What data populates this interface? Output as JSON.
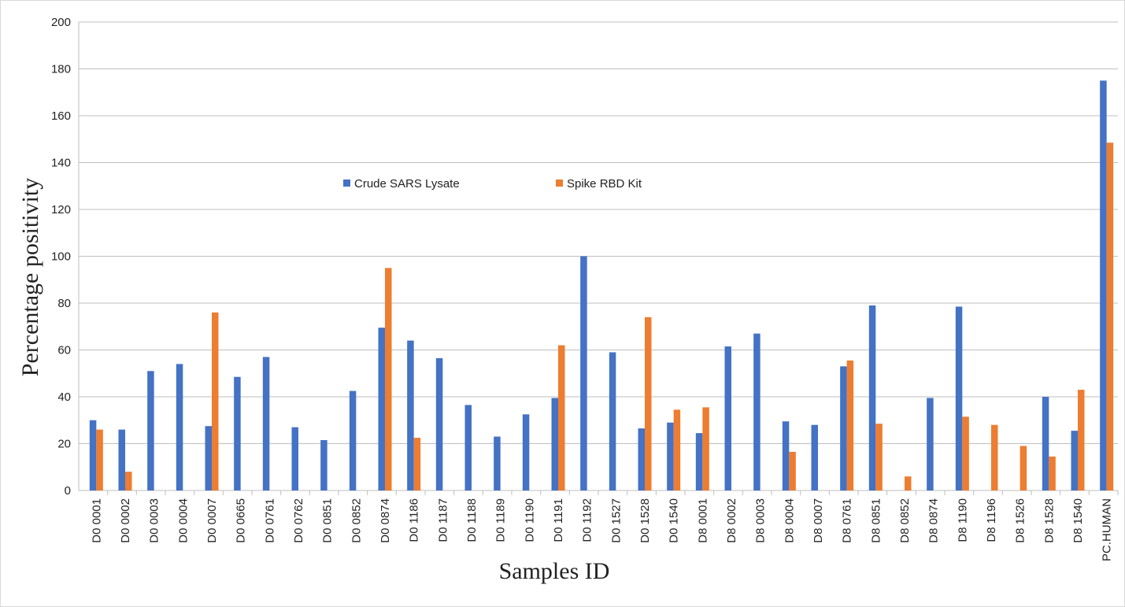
{
  "chart_data": {
    "type": "bar",
    "x_label": "Samples ID",
    "y_label": "Percentage positivity",
    "categories": [
      "D0 0001",
      "D0 0002",
      "D0 0003",
      "D0 0004",
      "D0 0007",
      "D0 0665",
      "D0 0761",
      "D0 0762",
      "D0 0851",
      "D0 0852",
      "D0 0874",
      "D0 1186",
      "D0 1187",
      "D0 1188",
      "D0 1189",
      "D0 1190",
      "D0 1191",
      "D0 1192",
      "D0 1527",
      "D0 1528",
      "D0 1540",
      "D8 0001",
      "D8 0002",
      "D8 0003",
      "D8 0004",
      "D8 0007",
      "D8 0761",
      "D8 0851",
      "D8 0852",
      "D8 0874",
      "D8 1190",
      "D8 1196",
      "D8 1526",
      "D8 1528",
      "D8 1540",
      "PC.HUMAN"
    ],
    "series": [
      {
        "name": "Crude SARS Lysate",
        "color": "#4472c4",
        "values": [
          30,
          26,
          51,
          54,
          27.5,
          48.5,
          57,
          27,
          21.5,
          42.5,
          69.5,
          64,
          56.5,
          36.5,
          23,
          32.5,
          39.5,
          100,
          59,
          26.5,
          29,
          24.5,
          61.5,
          67,
          29.5,
          28,
          53,
          79,
          null,
          39.5,
          78.5,
          null,
          null,
          40,
          25.5,
          175
        ]
      },
      {
        "name": "Spike RBD  Kit",
        "color": "#ed7d31",
        "values": [
          26,
          8,
          null,
          null,
          76,
          null,
          null,
          null,
          null,
          null,
          95,
          22.5,
          null,
          null,
          null,
          null,
          62,
          null,
          null,
          74,
          34.5,
          35.5,
          null,
          null,
          16.5,
          null,
          55.5,
          28.5,
          6,
          null,
          31.5,
          28,
          19,
          14.5,
          43,
          148.5
        ]
      }
    ],
    "ylim": [
      0,
      200
    ],
    "yticks": [
      0,
      20,
      40,
      60,
      80,
      100,
      120,
      140,
      160,
      180,
      200
    ],
    "grid": true
  }
}
